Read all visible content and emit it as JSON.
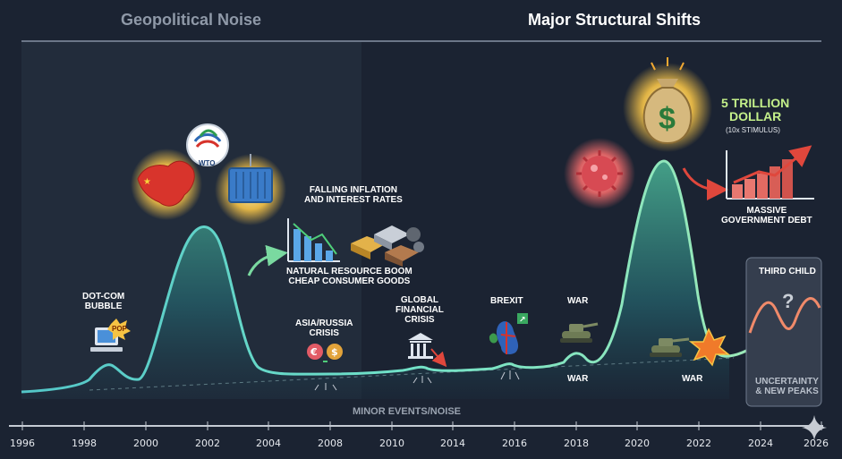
{
  "header": {
    "left": "Geopolitical Noise",
    "right": "Major Structural Shifts"
  },
  "labels": {
    "dotcom": "DOT-COM\nBUBBLE",
    "pop": "POP",
    "wto": "WTO",
    "falling": "FALLING INFLATION\nAND INTEREST RATES",
    "natural": "NATURAL RESOURCE BOOM\nCHEAP CONSUMER GOODS",
    "asia": "ASIA/RUSSIA\nCRISIS",
    "gfc": "GLOBAL\nFINANCIAL\nCRISIS",
    "brexit": "BREXIT",
    "war_top": "WAR",
    "war_low": "WAR",
    "war_2022": "WAR",
    "trillion": "5 TRILLION\nDOLLAR",
    "stimulus": "(10x STIMULUS)",
    "debt": "MASSIVE\nGOVERNMENT DEBT",
    "third_child": "THIRD CHILD",
    "uncertainty": "UNCERTAINTY\n& NEW PEAKS",
    "minor": "MINOR EVENTS/NOISE"
  },
  "axis": {
    "ticks": [
      "1996",
      "1998",
      "2000",
      "2002",
      "2004",
      "2008",
      "2010",
      "2014",
      "2016",
      "2018",
      "2020",
      "2022",
      "2024",
      "2026"
    ]
  },
  "colors": {
    "background": "#1b2332",
    "curve": "#6fe0c8",
    "accent_green": "#c4f08a",
    "red_arrow": "#e0473c"
  },
  "icons": [
    "computer-icon",
    "china-map-icon",
    "wto-logo-icon",
    "shipping-container-icon",
    "falling-bar-chart-icon",
    "metal-ingots-icon",
    "currency-exchange-icon",
    "bank-down-icon",
    "uk-map-icon",
    "tank-icon",
    "virus-icon",
    "money-bag-icon",
    "rising-debt-chart-icon",
    "explosion-icon",
    "sparkle-icon"
  ]
}
